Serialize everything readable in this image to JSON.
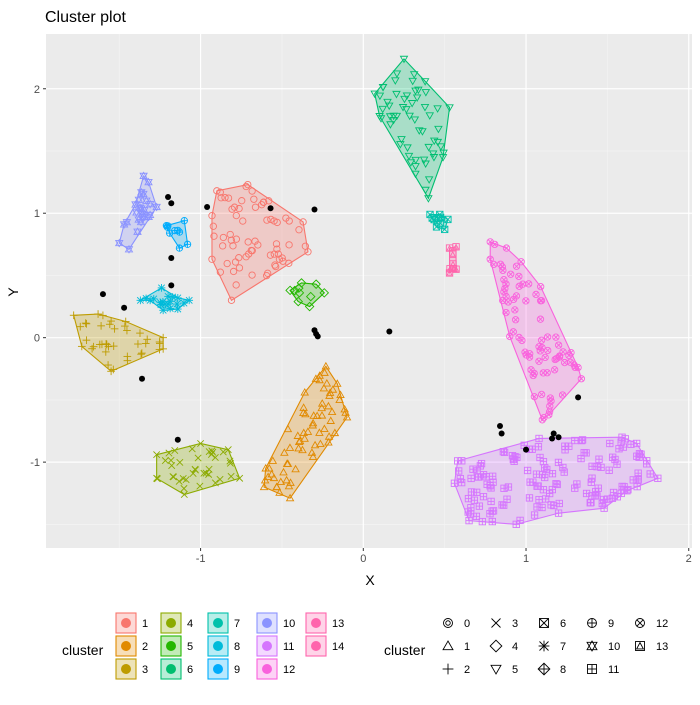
{
  "chart_data": {
    "type": "scatter",
    "title": "Cluster plot",
    "xlabel": "X",
    "ylabel": "Y",
    "xlim": [
      -1.95,
      2.02
    ],
    "ylim": [
      -1.69,
      2.44
    ],
    "xticks": [
      -1,
      0,
      1,
      2
    ],
    "yticks": [
      -1,
      0,
      1,
      2
    ],
    "grid": true,
    "panel_background": "#EBEBEB",
    "legend_position": "bottom",
    "fill_legend": {
      "title": "cluster",
      "entries": [
        {
          "label": "1",
          "color": "#F8766D"
        },
        {
          "label": "2",
          "color": "#E18A00"
        },
        {
          "label": "3",
          "color": "#BE9C00"
        },
        {
          "label": "4",
          "color": "#8CAB00"
        },
        {
          "label": "5",
          "color": "#24B700"
        },
        {
          "label": "6",
          "color": "#00BE70"
        },
        {
          "label": "7",
          "color": "#00C1AB"
        },
        {
          "label": "8",
          "color": "#00BBDA"
        },
        {
          "label": "9",
          "color": "#00ACFC"
        },
        {
          "label": "10",
          "color": "#8B93FF"
        },
        {
          "label": "11",
          "color": "#D575FE"
        },
        {
          "label": "12",
          "color": "#F962DD"
        },
        {
          "label": "13",
          "color": "#FF65AC"
        },
        {
          "label": "14",
          "color": "#FF65AC"
        }
      ]
    },
    "shape_legend": {
      "title": "cluster",
      "entries": [
        {
          "label": "0",
          "shape": "circle-in-circle"
        },
        {
          "label": "1",
          "shape": "triangle"
        },
        {
          "label": "2",
          "shape": "plus"
        },
        {
          "label": "3",
          "shape": "cross"
        },
        {
          "label": "4",
          "shape": "diamond"
        },
        {
          "label": "5",
          "shape": "triangle-down"
        },
        {
          "label": "6",
          "shape": "square-cross"
        },
        {
          "label": "7",
          "shape": "asterisk"
        },
        {
          "label": "8",
          "shape": "diamond-plus"
        },
        {
          "label": "9",
          "shape": "circle-plus"
        },
        {
          "label": "10",
          "shape": "star-of-david"
        },
        {
          "label": "11",
          "shape": "square-plus"
        },
        {
          "label": "12",
          "shape": "circle-cross"
        },
        {
          "label": "13",
          "shape": "square-triangle"
        }
      ]
    },
    "clusters": [
      {
        "id": "1",
        "color": "#F8766D",
        "shape": "circle",
        "n": 70,
        "hull": [
          [
            -0.93,
            0.98
          ],
          [
            -0.93,
            0.63
          ],
          [
            -0.81,
            0.3
          ],
          [
            -0.34,
            0.69
          ],
          [
            -0.37,
            0.93
          ],
          [
            -0.71,
            1.23
          ],
          [
            -0.9,
            1.18
          ]
        ]
      },
      {
        "id": "2",
        "color": "#E18A00",
        "shape": "triangle",
        "n": 70,
        "hull": [
          [
            -0.6,
            -1.05
          ],
          [
            -0.61,
            -1.2
          ],
          [
            -0.45,
            -1.29
          ],
          [
            -0.1,
            -0.64
          ],
          [
            -0.16,
            -0.37
          ],
          [
            -0.23,
            -0.23
          ],
          [
            -0.36,
            -0.44
          ]
        ]
      },
      {
        "id": "3",
        "color": "#BE9C00",
        "shape": "plus",
        "n": 40,
        "hull": [
          [
            -1.78,
            0.18
          ],
          [
            -1.73,
            -0.07
          ],
          [
            -1.55,
            -0.27
          ],
          [
            -1.23,
            -0.09
          ],
          [
            -1.23,
            0.0
          ],
          [
            -1.46,
            0.13
          ],
          [
            -1.63,
            0.19
          ]
        ]
      },
      {
        "id": "4",
        "color": "#8CAB00",
        "shape": "cross",
        "n": 40,
        "hull": [
          [
            -1.27,
            -0.94
          ],
          [
            -1.27,
            -1.13
          ],
          [
            -1.1,
            -1.26
          ],
          [
            -0.76,
            -1.13
          ],
          [
            -0.83,
            -0.9
          ],
          [
            -1.0,
            -0.85
          ]
        ]
      },
      {
        "id": "5",
        "color": "#24B700",
        "shape": "diamond",
        "n": 10,
        "hull": [
          [
            -0.45,
            0.38
          ],
          [
            -0.4,
            0.29
          ],
          [
            -0.33,
            0.25
          ],
          [
            -0.24,
            0.36
          ],
          [
            -0.29,
            0.43
          ],
          [
            -0.38,
            0.44
          ]
        ]
      },
      {
        "id": "6",
        "color": "#00BE70",
        "shape": "triangle-down",
        "n": 60,
        "hull": [
          [
            0.07,
            1.96
          ],
          [
            0.1,
            1.78
          ],
          [
            0.4,
            1.12
          ],
          [
            0.49,
            1.45
          ],
          [
            0.53,
            1.85
          ],
          [
            0.38,
            2.06
          ],
          [
            0.25,
            2.24
          ]
        ]
      },
      {
        "id": "7",
        "color": "#00C1AB",
        "shape": "square-cross",
        "n": 10,
        "hull": [
          [
            0.41,
            0.99
          ],
          [
            0.45,
            0.89
          ],
          [
            0.5,
            0.87
          ],
          [
            0.52,
            0.95
          ],
          [
            0.47,
            0.99
          ]
        ]
      },
      {
        "id": "8",
        "color": "#00BBDA",
        "shape": "asterisk",
        "n": 20,
        "hull": [
          [
            -1.37,
            0.3
          ],
          [
            -1.24,
            0.4
          ],
          [
            -1.14,
            0.32
          ],
          [
            -1.07,
            0.3
          ],
          [
            -1.14,
            0.23
          ],
          [
            -1.23,
            0.22
          ],
          [
            -1.31,
            0.3
          ]
        ]
      },
      {
        "id": "9",
        "color": "#00ACFC",
        "shape": "circle-plus",
        "n": 10,
        "hull": [
          [
            -1.21,
            0.9
          ],
          [
            -1.1,
            0.94
          ],
          [
            -1.08,
            0.75
          ],
          [
            -1.13,
            0.72
          ],
          [
            -1.19,
            0.84
          ]
        ]
      },
      {
        "id": "10",
        "color": "#8B93FF",
        "shape": "star-of-david",
        "n": 25,
        "hull": [
          [
            -1.5,
            0.76
          ],
          [
            -1.47,
            0.91
          ],
          [
            -1.4,
            1.07
          ],
          [
            -1.35,
            1.3
          ],
          [
            -1.32,
            1.25
          ],
          [
            -1.27,
            1.05
          ],
          [
            -1.44,
            0.71
          ]
        ]
      },
      {
        "id": "11",
        "color": "#D575FE",
        "shape": "square-plus",
        "n": 150,
        "hull": [
          [
            0.56,
            -1.17
          ],
          [
            0.58,
            -0.99
          ],
          [
            1.08,
            -0.81
          ],
          [
            1.59,
            -0.8
          ],
          [
            1.68,
            -0.85
          ],
          [
            1.81,
            -1.13
          ],
          [
            1.62,
            -1.23
          ],
          [
            1.48,
            -1.37
          ],
          [
            1.2,
            -1.41
          ],
          [
            0.94,
            -1.5
          ],
          [
            0.65,
            -1.47
          ]
        ]
      },
      {
        "id": "12",
        "color": "#F962DD",
        "shape": "circle-cross",
        "n": 80,
        "hull": [
          [
            0.78,
            0.77
          ],
          [
            0.78,
            0.63
          ],
          [
            0.9,
            0.01
          ],
          [
            1.1,
            -0.66
          ],
          [
            1.14,
            -0.62
          ],
          [
            1.34,
            -0.33
          ],
          [
            1.32,
            -0.24
          ],
          [
            1.09,
            0.41
          ],
          [
            0.97,
            0.61
          ],
          [
            0.88,
            0.72
          ]
        ]
      },
      {
        "id": "13",
        "color": "#FF65AC",
        "shape": "square-triangle",
        "n": 8,
        "hull": [
          [
            0.53,
            0.72
          ],
          [
            0.57,
            0.73
          ],
          [
            0.57,
            0.55
          ],
          [
            0.53,
            0.52
          ]
        ]
      },
      {
        "id": "14",
        "color": "#FF65AC",
        "shape": "square-triangle",
        "n": 0,
        "hull": []
      }
    ],
    "noise_points": [
      [
        -1.2,
        1.13
      ],
      [
        -1.18,
        1.08
      ],
      [
        -0.96,
        1.05
      ],
      [
        -0.57,
        1.04
      ],
      [
        -0.3,
        1.03
      ],
      [
        -1.18,
        0.64
      ],
      [
        -1.18,
        0.42
      ],
      [
        -1.6,
        0.35
      ],
      [
        -1.47,
        0.24
      ],
      [
        -1.36,
        -0.33
      ],
      [
        -1.14,
        -0.82
      ],
      [
        -0.3,
        0.06
      ],
      [
        -0.29,
        0.03
      ],
      [
        -0.28,
        0.01
      ],
      [
        0.16,
        0.05
      ],
      [
        0.84,
        -0.71
      ],
      [
        0.85,
        -0.77
      ],
      [
        1.0,
        -0.9
      ],
      [
        1.16,
        -0.81
      ],
      [
        1.17,
        -0.77
      ],
      [
        1.2,
        -0.8
      ],
      [
        1.32,
        -0.48
      ]
    ]
  }
}
